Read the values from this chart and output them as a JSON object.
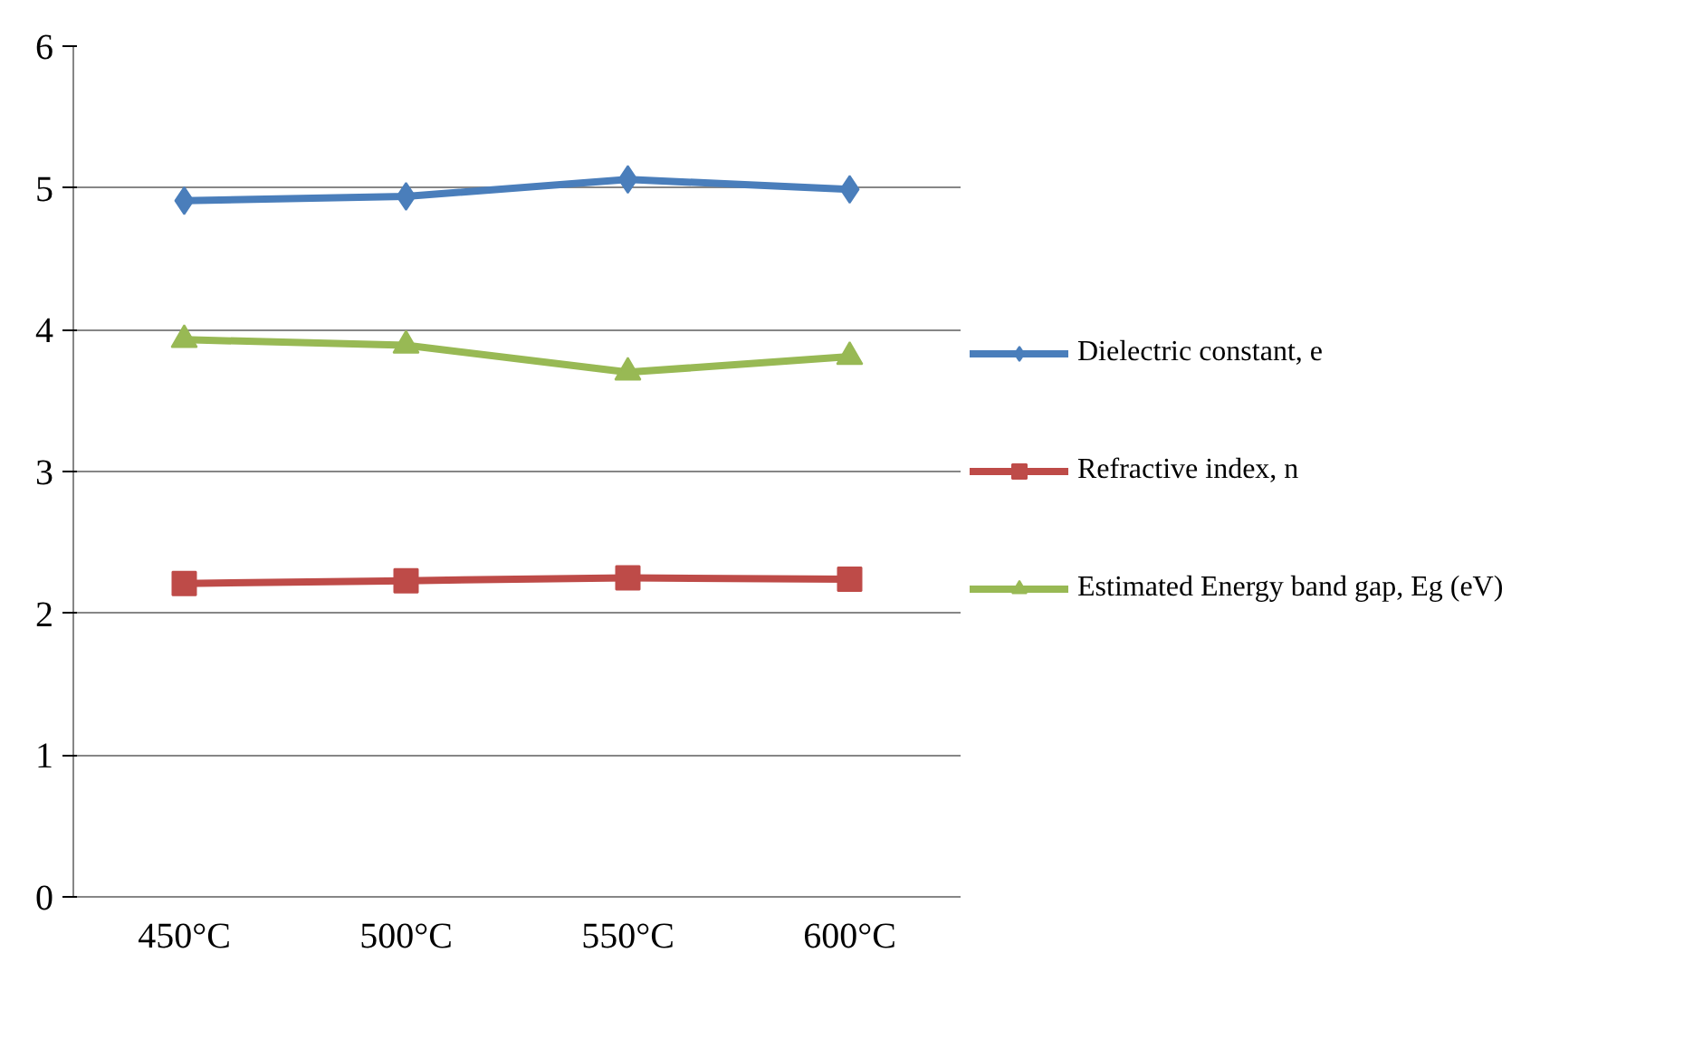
{
  "chart_data": {
    "type": "line",
    "categories": [
      "450°C",
      "500°C",
      "550°C",
      "600°C"
    ],
    "series": [
      {
        "name": "Dielectric constant, e",
        "color": "#4a7ebb",
        "marker": "diamond",
        "values": [
          4.91,
          4.94,
          5.06,
          4.99
        ]
      },
      {
        "name": "Refractive index, n",
        "color": "#be4b48",
        "marker": "square",
        "values": [
          2.21,
          2.23,
          2.25,
          2.24
        ]
      },
      {
        "name": "Estimated Energy band gap, Eg (eV)",
        "color": "#98b954",
        "marker": "triangle",
        "values": [
          3.93,
          3.89,
          3.7,
          3.81
        ]
      }
    ],
    "ylim": [
      0,
      6
    ],
    "yticks": [
      0,
      1,
      2,
      3,
      4,
      5,
      6
    ],
    "grid": "y",
    "legend": "right"
  }
}
